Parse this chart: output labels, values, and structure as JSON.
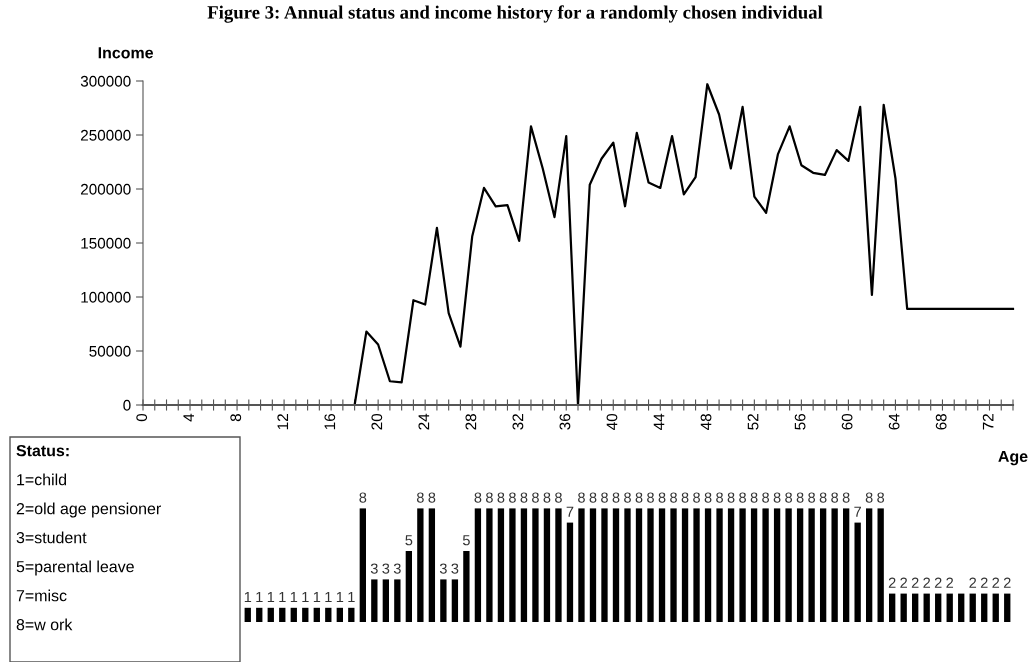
{
  "chart_data": [
    {
      "type": "line",
      "title": "Figure 3: Annual status and income history for a randomly chosen individual",
      "xlabel": "Age",
      "ylabel": "Income",
      "series": [
        {
          "color": "#000000",
          "x": [
            0,
            1,
            2,
            3,
            4,
            5,
            6,
            7,
            8,
            9,
            10,
            11,
            12,
            13,
            14,
            15,
            16,
            17,
            18,
            19,
            20,
            21,
            22,
            23,
            24,
            25,
            26,
            27,
            28,
            29,
            30,
            31,
            32,
            33,
            34,
            35,
            36,
            37,
            38,
            39,
            40,
            41,
            42,
            43,
            44,
            45,
            46,
            47,
            48,
            49,
            50,
            51,
            52,
            53,
            54,
            55,
            56,
            57,
            58,
            59,
            60,
            61,
            62,
            63,
            64,
            65,
            66,
            67,
            68,
            69,
            70,
            71,
            72,
            73,
            74
          ],
          "values": [
            0,
            0,
            0,
            0,
            0,
            0,
            0,
            0,
            0,
            0,
            0,
            0,
            0,
            0,
            0,
            0,
            0,
            0,
            0,
            68000,
            56000,
            22000,
            21000,
            97000,
            93000,
            164000,
            85000,
            54000,
            156000,
            201000,
            184000,
            185000,
            152000,
            258000,
            219000,
            174000,
            249000,
            0,
            204000,
            228000,
            243000,
            184000,
            252000,
            206000,
            201000,
            249000,
            195000,
            211000,
            297000,
            269000,
            219000,
            276000,
            193000,
            178000,
            232000,
            258000,
            222000,
            215000,
            213000,
            236000,
            226000,
            276000,
            102000,
            278000,
            210000,
            89000,
            89000,
            89000,
            89000,
            89000,
            89000,
            89000,
            89000,
            89000,
            89000
          ]
        }
      ],
      "xlim": [
        0,
        74
      ],
      "xticks": [
        0,
        {
          "value": 1,
          "label": null
        },
        {
          "value": 2,
          "label": null
        },
        {
          "value": 3,
          "label": null
        },
        4,
        {
          "value": 5,
          "label": null
        },
        {
          "value": 6,
          "label": null
        },
        {
          "value": 7,
          "label": null
        },
        8,
        {
          "value": 9,
          "label": null
        },
        {
          "value": 10,
          "label": null
        },
        {
          "value": 11,
          "label": null
        },
        12,
        {
          "value": 13,
          "label": null
        },
        {
          "value": 14,
          "label": null
        },
        {
          "value": 15,
          "label": null
        },
        16,
        {
          "value": 17,
          "label": null
        },
        {
          "value": 18,
          "label": null
        },
        {
          "value": 19,
          "label": null
        },
        20,
        {
          "value": 21,
          "label": null
        },
        {
          "value": 22,
          "label": null
        },
        {
          "value": 23,
          "label": null
        },
        24,
        {
          "value": 25,
          "label": null
        },
        {
          "value": 26,
          "label": null
        },
        {
          "value": 27,
          "label": null
        },
        28,
        {
          "value": 29,
          "label": null
        },
        {
          "value": 30,
          "label": null
        },
        {
          "value": 31,
          "label": null
        },
        32,
        {
          "value": 33,
          "label": null
        },
        {
          "value": 34,
          "label": null
        },
        {
          "value": 35,
          "label": null
        },
        36,
        {
          "value": 37,
          "label": null
        },
        {
          "value": 38,
          "label": null
        },
        {
          "value": 39,
          "label": null
        },
        40,
        {
          "value": 41,
          "label": null
        },
        {
          "value": 42,
          "label": null
        },
        {
          "value": 43,
          "label": null
        },
        44,
        {
          "value": 45,
          "label": null
        },
        {
          "value": 46,
          "label": null
        },
        {
          "value": 47,
          "label": null
        },
        48,
        {
          "value": 49,
          "label": null
        },
        {
          "value": 50,
          "label": null
        },
        {
          "value": 51,
          "label": null
        },
        52,
        {
          "value": 53,
          "label": null
        },
        {
          "value": 54,
          "label": null
        },
        {
          "value": 55,
          "label": null
        },
        56,
        {
          "value": 57,
          "label": null
        },
        {
          "value": 58,
          "label": null
        },
        {
          "value": 59,
          "label": null
        },
        60,
        {
          "value": 61,
          "label": null
        },
        {
          "value": 62,
          "label": null
        },
        {
          "value": 63,
          "label": null
        },
        64,
        {
          "value": 65,
          "label": null
        },
        {
          "value": 66,
          "label": null
        },
        {
          "value": 67,
          "label": null
        },
        68,
        {
          "value": 69,
          "label": null
        },
        {
          "value": 70,
          "label": null
        },
        {
          "value": 71,
          "label": null
        },
        72,
        {
          "value": 73,
          "label": null
        },
        {
          "value": 74,
          "label": null
        }
      ],
      "ylim": [
        0,
        300000
      ],
      "yticks": [
        0,
        50000,
        100000,
        150000,
        200000,
        250000,
        300000
      ],
      "grid": false,
      "legend": false,
      "marker": "none",
      "line_style": "solid"
    },
    {
      "type": "bar",
      "categories": [
        null,
        null,
        null,
        null,
        null,
        null,
        null,
        null,
        null,
        null,
        null,
        null,
        null,
        null,
        null,
        null,
        null,
        null,
        null,
        null,
        null,
        null,
        null,
        null,
        null,
        null,
        null,
        null,
        null,
        null,
        null,
        null,
        null,
        null,
        null,
        null,
        null,
        null,
        null,
        null,
        null,
        null,
        null,
        null,
        null,
        null,
        null,
        null,
        null,
        null,
        null,
        null,
        null,
        null,
        null,
        null,
        null,
        null,
        null,
        null,
        null,
        null,
        null,
        null,
        null,
        null,
        null
      ],
      "color": "#000000",
      "values": [
        1,
        1,
        1,
        1,
        1,
        1,
        1,
        1,
        1,
        1,
        8,
        3,
        3,
        3,
        5,
        8,
        8,
        3,
        3,
        5,
        8,
        8,
        8,
        8,
        8,
        8,
        8,
        8,
        7,
        8,
        8,
        8,
        8,
        8,
        8,
        8,
        8,
        8,
        8,
        8,
        8,
        8,
        8,
        8,
        8,
        8,
        8,
        8,
        8,
        8,
        8,
        8,
        8,
        7,
        8,
        8,
        2,
        2,
        2,
        2,
        2,
        2,
        2,
        2,
        2,
        2,
        2
      ],
      "value_labels": [
        "1",
        "1",
        "1",
        "1",
        "1",
        "1",
        "1",
        "1",
        "1",
        "1",
        "8",
        "3",
        "3",
        "3",
        "5",
        "8",
        "8",
        "3",
        "3",
        "5",
        "8",
        "8",
        "8",
        "8",
        "8",
        "8",
        "8",
        "8",
        "7",
        "8",
        "8",
        "8",
        "8",
        "8",
        "8",
        "8",
        "8",
        "8",
        "8",
        "8",
        "8",
        "8",
        "8",
        "8",
        "8",
        "8",
        "8",
        "8",
        "8",
        "8",
        "8",
        "8",
        "8",
        "7",
        "8",
        "8",
        "2",
        "2",
        "2",
        "2",
        "2",
        "2",
        null,
        "2",
        "2",
        "2",
        "2"
      ],
      "annotations": [
        "Status:",
        "1=child",
        "2=old age pensioner",
        "3=student",
        "5=parental leave",
        "7=misc",
        "8=w ork"
      ]
    }
  ]
}
